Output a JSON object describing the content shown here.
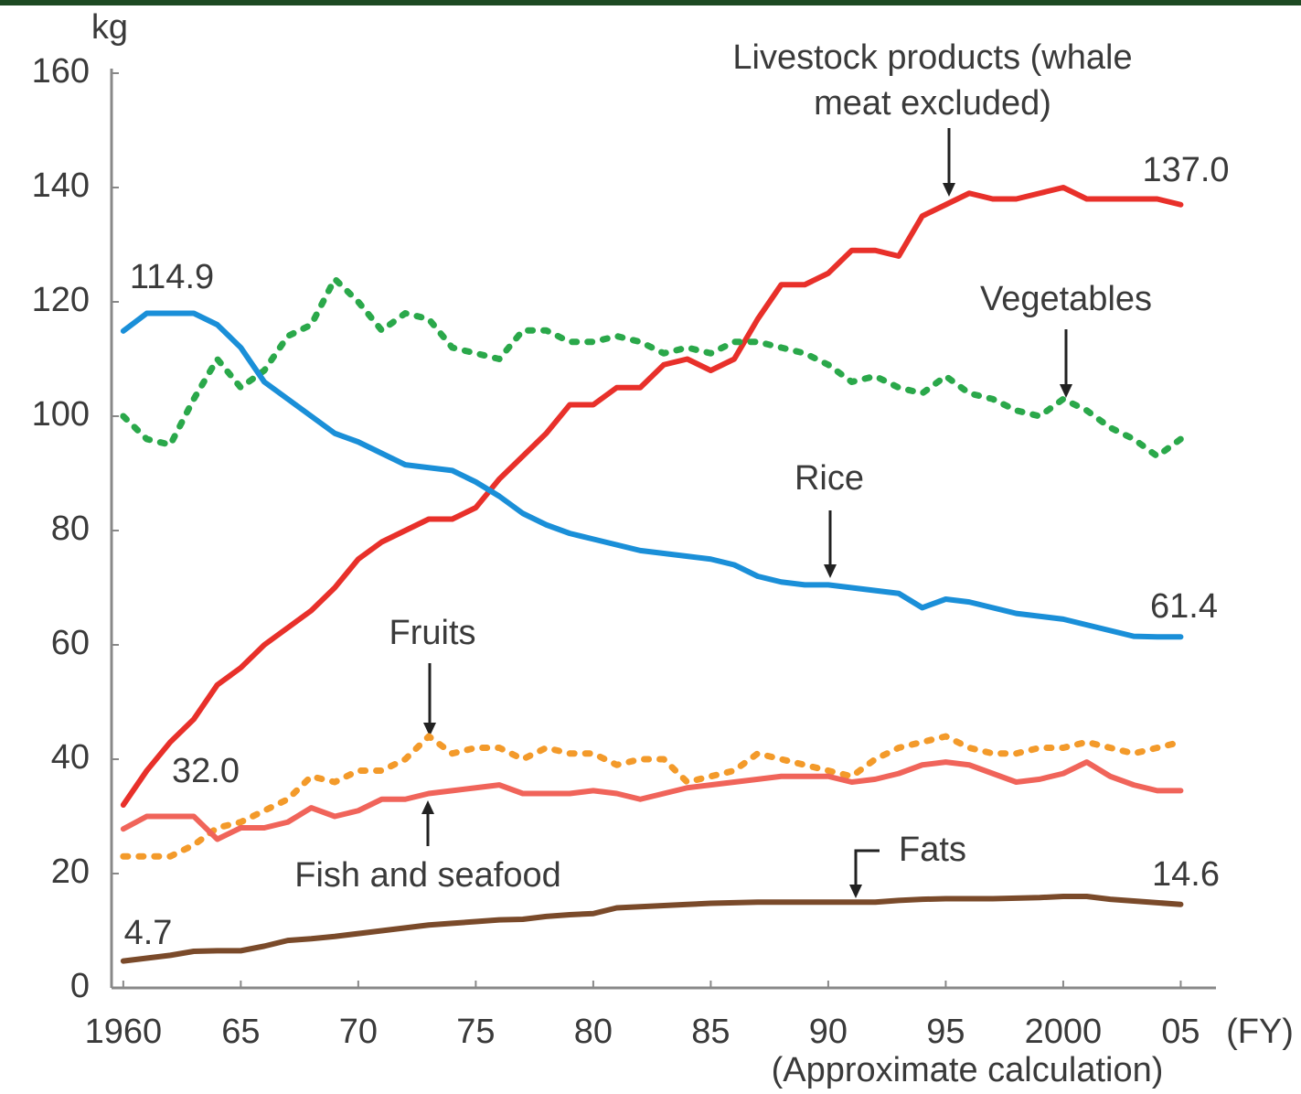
{
  "chart_data": {
    "type": "line",
    "y_label": "kg",
    "x_unit": "(FY)",
    "x_note": "(Approximate calculation)",
    "x": [
      1960,
      1961,
      1962,
      1963,
      1964,
      1965,
      1966,
      1967,
      1968,
      1969,
      1970,
      1971,
      1972,
      1973,
      1974,
      1975,
      1976,
      1977,
      1978,
      1979,
      1980,
      1981,
      1982,
      1983,
      1984,
      1985,
      1986,
      1987,
      1988,
      1989,
      1990,
      1991,
      1992,
      1993,
      1994,
      1995,
      1996,
      1997,
      1998,
      1999,
      2000,
      2001,
      2002,
      2003,
      2004,
      2005
    ],
    "xlim": [
      1959.5,
      2006.5
    ],
    "xticks": [
      1960,
      {
        "value": 1965,
        "label": "65"
      },
      {
        "value": 1970,
        "label": "70"
      },
      {
        "value": 1975,
        "label": "75"
      },
      {
        "value": 1980,
        "label": "80"
      },
      {
        "value": 1985,
        "label": "85"
      },
      {
        "value": 1990,
        "label": "90"
      },
      {
        "value": 1995,
        "label": "95"
      },
      2000,
      {
        "value": 2005,
        "label": "05"
      }
    ],
    "ylim": [
      0,
      160
    ],
    "yticks": [
      0,
      20,
      40,
      60,
      80,
      100,
      120,
      140,
      160
    ],
    "series": [
      {
        "name": "Livestock products (whale meat excluded)",
        "color": "#e8302a",
        "style": "solid",
        "values": [
          32.0,
          38,
          43,
          47,
          53,
          56,
          60,
          63,
          66,
          70,
          75,
          78,
          80,
          82,
          82,
          84,
          89,
          93,
          97,
          102,
          102,
          105,
          105,
          109,
          110,
          108,
          110,
          117,
          123,
          123,
          125,
          129,
          129,
          128,
          135,
          137,
          139,
          138,
          138,
          139,
          140,
          138,
          138,
          138,
          138,
          137.0
        ],
        "value_labels": [
          "32.0",
          null,
          null,
          null,
          null,
          null,
          null,
          null,
          null,
          null,
          null,
          null,
          null,
          null,
          null,
          null,
          null,
          null,
          null,
          null,
          null,
          null,
          null,
          null,
          null,
          null,
          null,
          null,
          null,
          null,
          null,
          null,
          null,
          null,
          null,
          null,
          null,
          null,
          null,
          null,
          null,
          null,
          null,
          null,
          null,
          "137.0"
        ]
      },
      {
        "name": "Vegetables",
        "color": "#2aa84a",
        "style": "dotted",
        "values": [
          100,
          96,
          95,
          103,
          110,
          105,
          108,
          114,
          116,
          124,
          120,
          115,
          118,
          117,
          112,
          111,
          110,
          115,
          115,
          113,
          113,
          114,
          113,
          111,
          112,
          111,
          113,
          113,
          112,
          111,
          109,
          106,
          107,
          105,
          104,
          107,
          104,
          103,
          101,
          100,
          103,
          101,
          98,
          96,
          93,
          96
        ]
      },
      {
        "name": "Rice",
        "color": "#1a8fd8",
        "style": "solid",
        "values": [
          114.9,
          118,
          118,
          118,
          116,
          112,
          106,
          103,
          100,
          97,
          95.5,
          93.5,
          91.5,
          91,
          90.5,
          88.5,
          86,
          83,
          81,
          79.5,
          78.5,
          77.5,
          76.5,
          76,
          75.5,
          75,
          74,
          72,
          71,
          70.5,
          70.5,
          70,
          69.5,
          69,
          66.5,
          68,
          67.5,
          66.5,
          65.5,
          65,
          64.5,
          63.5,
          62.5,
          61.5,
          61.4,
          61.4
        ],
        "value_labels": [
          "114.9",
          null,
          null,
          null,
          null,
          null,
          null,
          null,
          null,
          null,
          null,
          null,
          null,
          null,
          null,
          null,
          null,
          null,
          null,
          null,
          null,
          null,
          null,
          null,
          null,
          null,
          null,
          null,
          null,
          null,
          null,
          null,
          null,
          null,
          null,
          null,
          null,
          null,
          null,
          null,
          null,
          null,
          null,
          null,
          null,
          "61.4"
        ]
      },
      {
        "name": "Fruits",
        "color": "#f39a2a",
        "style": "dotted",
        "values": [
          23,
          23,
          23,
          25,
          28,
          29,
          31,
          33,
          37,
          36,
          38,
          38,
          40,
          44,
          41,
          42,
          42,
          40,
          42,
          41,
          41,
          39,
          40,
          40,
          36,
          37,
          38,
          41,
          40,
          39,
          38,
          37,
          40,
          42,
          43,
          44,
          42,
          41,
          41,
          42,
          42,
          43,
          42,
          41,
          42,
          43
        ]
      },
      {
        "name": "Fish and seafood",
        "color": "#f0645a",
        "style": "solid",
        "values": [
          27.8,
          30,
          30,
          30,
          26,
          28,
          28,
          29,
          31.5,
          30,
          31,
          33,
          33,
          34,
          34.5,
          35,
          35.5,
          34,
          34,
          34,
          34.5,
          34,
          33,
          34,
          35,
          35.5,
          36,
          36.5,
          37,
          37,
          37,
          36,
          36.5,
          37.5,
          39,
          39.5,
          39,
          37.5,
          36,
          36.5,
          37.5,
          39.5,
          37,
          35.5,
          34.5,
          34.5
        ]
      },
      {
        "name": "Fats",
        "color": "#7a4a2a",
        "style": "solid",
        "values": [
          4.7,
          5.2,
          5.7,
          6.4,
          6.5,
          6.5,
          7.3,
          8.3,
          8.6,
          9,
          9.5,
          10,
          10.5,
          11,
          11.3,
          11.6,
          11.9,
          12,
          12.5,
          12.8,
          13,
          14,
          14.2,
          14.4,
          14.6,
          14.8,
          14.9,
          15,
          15,
          15,
          15,
          15,
          15,
          15.3,
          15.5,
          15.6,
          15.6,
          15.6,
          15.7,
          15.8,
          16,
          16,
          15.5,
          15.2,
          14.9,
          14.6
        ],
        "value_labels": [
          "4.7",
          null,
          null,
          null,
          null,
          null,
          null,
          null,
          null,
          null,
          null,
          null,
          null,
          null,
          null,
          null,
          null,
          null,
          null,
          null,
          null,
          null,
          null,
          null,
          null,
          null,
          null,
          null,
          null,
          null,
          null,
          null,
          null,
          null,
          null,
          null,
          null,
          null,
          null,
          null,
          null,
          null,
          null,
          null,
          null,
          "14.6"
        ]
      }
    ]
  }
}
